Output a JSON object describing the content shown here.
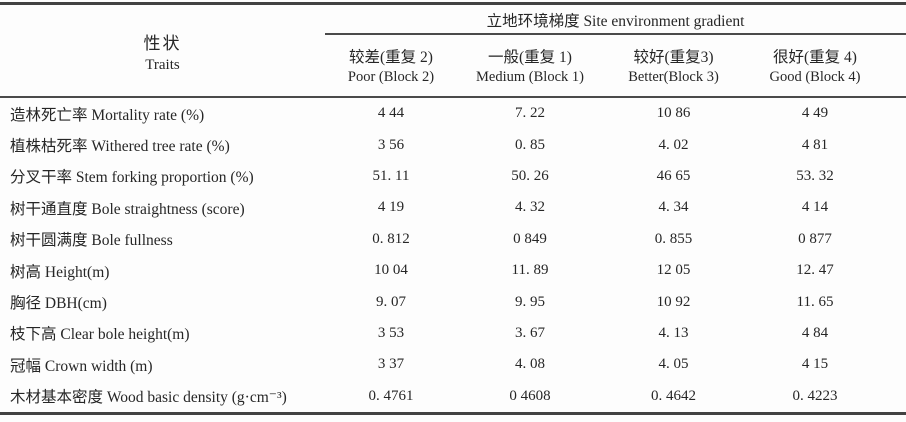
{
  "page": {
    "background": "#fdfdfd",
    "text_color": "#262626",
    "rule_color": "#424242"
  },
  "table": {
    "header": {
      "traits_zh": "性状",
      "traits_en": "Traits",
      "gradient_title": "立地环境梯度 Site environment gradient",
      "columns": [
        {
          "zh": "较差(重复 2)",
          "en": "Poor (Block 2)"
        },
        {
          "zh": "一般(重复 1)",
          "en": "Medium (Block 1)"
        },
        {
          "zh": "较好(重复3)",
          "en": "Better(Block 3)"
        },
        {
          "zh": "很好(重复 4)",
          "en": "Good (Block 4)"
        }
      ]
    },
    "rows": [
      {
        "label": "造林死亡率 Mortality rate (%)",
        "values": [
          "4 44",
          "7. 22",
          "10 86",
          "4 49"
        ]
      },
      {
        "label": "植株枯死率 Withered tree rate (%)",
        "values": [
          "3 56",
          "0. 85",
          "4. 02",
          "4 81"
        ]
      },
      {
        "label": "分叉干率 Stem forking proportion (%)",
        "values": [
          "51. 11",
          "50. 26",
          "46 65",
          "53. 32"
        ]
      },
      {
        "label": "树干通直度 Bole straightness (score)",
        "values": [
          "4 19",
          "4. 32",
          "4. 34",
          "4 14"
        ]
      },
      {
        "label": "树干圆满度 Bole fullness",
        "values": [
          "0. 812",
          "0 849",
          "0. 855",
          "0 877"
        ]
      },
      {
        "label": "树高 Height(m)",
        "values": [
          "10 04",
          "11. 89",
          "12 05",
          "12. 47"
        ]
      },
      {
        "label": "胸径 DBH(cm)",
        "values": [
          "9. 07",
          "9. 95",
          "10 92",
          "11. 65"
        ]
      },
      {
        "label": "枝下高 Clear bole height(m)",
        "values": [
          "3 53",
          "3. 67",
          "4. 13",
          "4 84"
        ]
      },
      {
        "label": "冠幅 Crown width (m)",
        "values": [
          "3 37",
          "4. 08",
          "4. 05",
          "4 15"
        ]
      },
      {
        "label": "木材基本密度 Wood basic density (g·cm⁻³)",
        "values": [
          "0. 4761",
          "0 4608",
          "0. 4642",
          "0. 4223"
        ]
      }
    ]
  }
}
